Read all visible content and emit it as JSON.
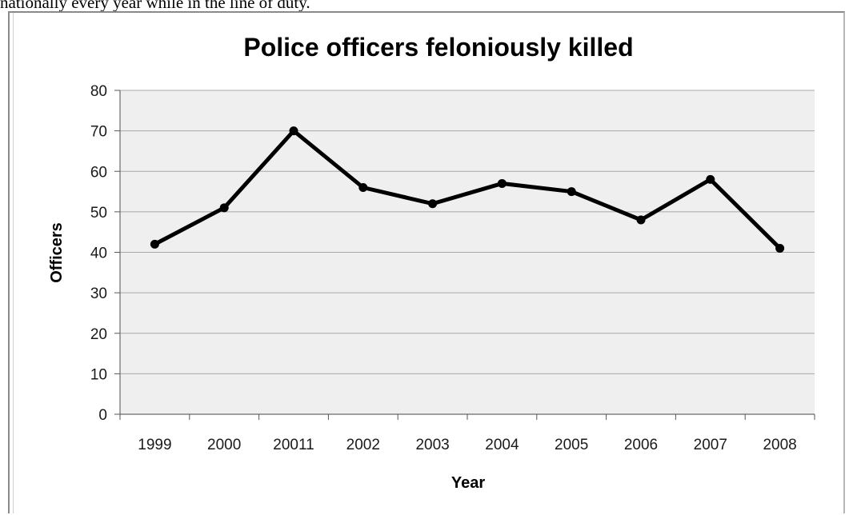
{
  "intro_text": "nationally every year while in the line of duty.",
  "chart_data": {
    "type": "line",
    "title": "Police officers feloniously killed",
    "xlabel": "Year",
    "ylabel": "Officers",
    "categories": [
      "1999",
      "2000",
      "20011",
      "2002",
      "2003",
      "2004",
      "2005",
      "2006",
      "2007",
      "2008"
    ],
    "series": [
      {
        "values": [
          42,
          51,
          70,
          56,
          52,
          57,
          55,
          48,
          58,
          41
        ]
      }
    ],
    "ylim": [
      0,
      80
    ],
    "yticks": [
      0,
      10,
      20,
      30,
      40,
      50,
      60,
      70,
      80
    ],
    "grid": true,
    "legend": "none",
    "colors": {
      "plot_background": "#efefef",
      "gridline": "#a8a8a8",
      "line": "#000000",
      "marker": "#000000"
    }
  }
}
